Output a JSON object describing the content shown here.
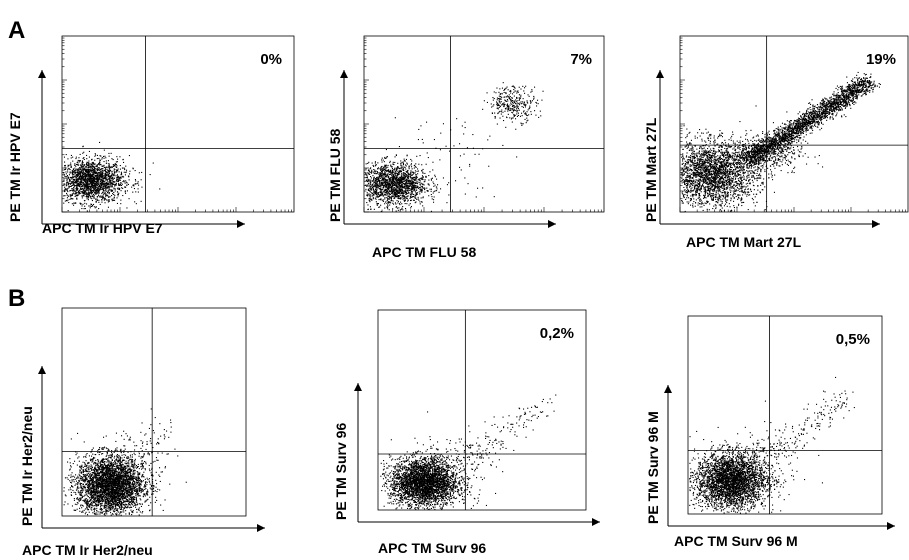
{
  "panel_labels": [
    "A",
    "B"
  ],
  "chart_data": [
    {
      "type": "scatter",
      "panel": "A",
      "xlabel": "APC TM Ir HPV E7",
      "ylabel": "PE TM Ir HPV E7",
      "scale": "log",
      "ticks": true,
      "annotation": "0%",
      "quadrant_gates": {
        "x": 0.36,
        "y": 0.36
      },
      "clusters": [
        {
          "cx": 0.12,
          "cy": 0.18,
          "sx": 0.07,
          "sy": 0.06,
          "n": 1800
        },
        {
          "cx": 0.2,
          "cy": 0.2,
          "sx": 0.08,
          "sy": 0.08,
          "n": 120
        }
      ],
      "diagonal": null
    },
    {
      "type": "scatter",
      "panel": "A",
      "xlabel": "APC TM FLU 58",
      "ylabel": "PE TM FLU 58",
      "scale": "log",
      "ticks": true,
      "annotation": "7%",
      "quadrant_gates": {
        "x": 0.36,
        "y": 0.36
      },
      "clusters": [
        {
          "cx": 0.12,
          "cy": 0.16,
          "sx": 0.07,
          "sy": 0.06,
          "n": 1700
        },
        {
          "cx": 0.62,
          "cy": 0.62,
          "sx": 0.05,
          "sy": 0.05,
          "n": 320
        },
        {
          "cx": 0.35,
          "cy": 0.35,
          "sx": 0.12,
          "sy": 0.12,
          "n": 60
        }
      ],
      "diagonal": null
    },
    {
      "type": "scatter",
      "panel": "A",
      "xlabel": "APC TM Mart 27L",
      "ylabel": "PE TM Mart 27L",
      "scale": "log",
      "ticks": true,
      "annotation": "19%",
      "quadrant_gates": {
        "x": 0.38,
        "y": 0.38
      },
      "clusters": [
        {
          "cx": 0.14,
          "cy": 0.22,
          "sx": 0.1,
          "sy": 0.09,
          "n": 2600
        },
        {
          "cx": 0.38,
          "cy": 0.34,
          "sx": 0.08,
          "sy": 0.06,
          "n": 400
        }
      ],
      "diagonal": {
        "x0": 0.3,
        "y0": 0.3,
        "x1": 0.82,
        "y1": 0.74,
        "spread": 0.025,
        "n": 2400
      }
    },
    {
      "type": "scatter",
      "panel": "B",
      "xlabel": "APC TM Ir  Her2/neu",
      "ylabel": "PE TM Ir  Her2/neu",
      "scale": "linear",
      "ticks": false,
      "annotation": "",
      "quadrant_gates": {
        "x": 0.49,
        "y": 0.31
      },
      "clusters": [
        {
          "cx": 0.26,
          "cy": 0.15,
          "sx": 0.09,
          "sy": 0.07,
          "n": 3600
        },
        {
          "cx": 0.4,
          "cy": 0.24,
          "sx": 0.1,
          "sy": 0.1,
          "n": 150
        }
      ],
      "diagonal": {
        "x0": 0.4,
        "y0": 0.26,
        "x1": 0.6,
        "y1": 0.47,
        "spread": 0.03,
        "n": 30
      }
    },
    {
      "type": "scatter",
      "panel": "B",
      "xlabel": "APC TM Surv 96",
      "ylabel": "PE TM Surv 96",
      "scale": "linear",
      "ticks": false,
      "annotation": "0,2%",
      "quadrant_gates": {
        "x": 0.42,
        "y": 0.28
      },
      "clusters": [
        {
          "cx": 0.22,
          "cy": 0.14,
          "sx": 0.08,
          "sy": 0.06,
          "n": 3200
        },
        {
          "cx": 0.36,
          "cy": 0.22,
          "sx": 0.1,
          "sy": 0.09,
          "n": 150
        }
      ],
      "diagonal": {
        "x0": 0.4,
        "y0": 0.24,
        "x1": 0.78,
        "y1": 0.52,
        "spread": 0.04,
        "n": 140
      }
    },
    {
      "type": "scatter",
      "panel": "B",
      "xlabel": "APC TM Surv 96 M",
      "ylabel": "PE TM Surv 96 M",
      "scale": "linear",
      "ticks": false,
      "annotation": "0,5%",
      "quadrant_gates": {
        "x": 0.42,
        "y": 0.32
      },
      "clusters": [
        {
          "cx": 0.22,
          "cy": 0.17,
          "sx": 0.09,
          "sy": 0.07,
          "n": 3200
        },
        {
          "cx": 0.36,
          "cy": 0.25,
          "sx": 0.1,
          "sy": 0.09,
          "n": 150
        }
      ],
      "diagonal": {
        "x0": 0.4,
        "y0": 0.28,
        "x1": 0.82,
        "y1": 0.6,
        "spread": 0.04,
        "n": 170
      }
    }
  ]
}
